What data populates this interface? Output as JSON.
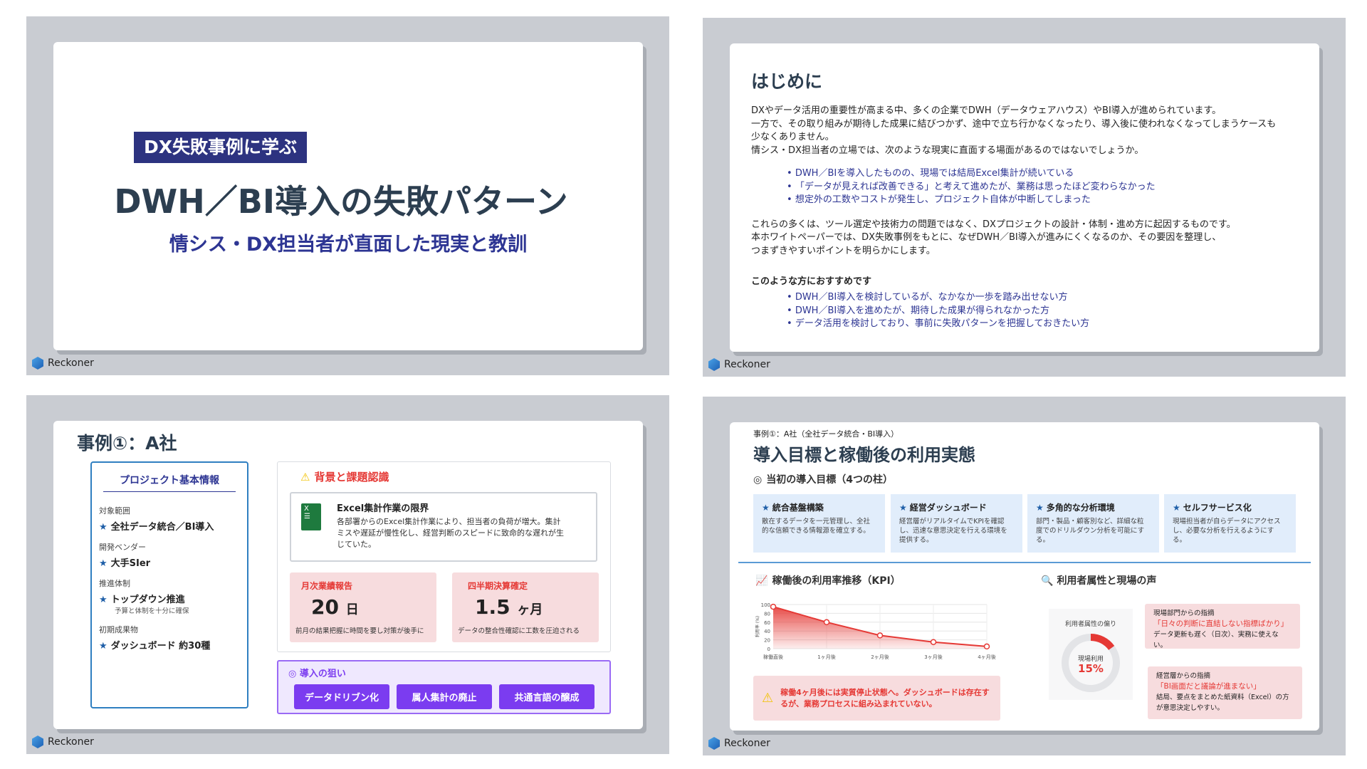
{
  "brand": "Reckoner",
  "slide1": {
    "badge": "DX失敗事例に学ぶ",
    "title": "DWH／BI導入の失敗パターン",
    "subtitle": "情シス・DX担当者が直面した現実と教訓"
  },
  "slide2": {
    "heading": "はじめに",
    "para1": [
      "DXやデータ活用の重要性が高まる中、多くの企業でDWH（データウェアハウス）やBI導入が進められています。",
      "一方で、その取り組みが期待した成果に結びつかず、途中で立ち行かなくなったり、導入後に使われなくなってしまうケースも",
      "少なくありません。",
      "情シス・DX担当者の立場では、次のような現実に直面する場面があるのではないでしょうか。"
    ],
    "bullets1": [
      "DWH／BIを導入したものの、現場では結局Excel集計が続いている",
      "「データが見えれば改善できる」と考えて進めたが、業務は思ったほど変わらなかった",
      "想定外の工数やコストが発生し、プロジェクト自体が中断してしまった"
    ],
    "para2": [
      "これらの多くは、ツール選定や技術力の問題ではなく、DXプロジェクトの設計・体制・進め方に起因するものです。",
      "本ホワイトペーパーでは、DX失敗事例をもとに、なぜDWH／BI導入が進みにくくなるのか、その要因を整理し、",
      "つまずきやすいポイントを明らかにします。"
    ],
    "sub_heading": "このような方におすすめです",
    "bullets2": [
      "DWH／BI導入を検討しているが、なかなか一歩を踏み出せない方",
      "DWH／BI導入を進めたが、期待した成果が得られなかった方",
      "データ活用を検討しており、事前に失敗パターンを把握しておきたい方"
    ]
  },
  "slide3": {
    "title": "事例①：A社",
    "info": {
      "heading": "プロジェクト基本情報",
      "fields": [
        {
          "label": "対象範囲",
          "value": "全社データ統合／BI導入"
        },
        {
          "label": "開発ベンダー",
          "value": "大手SIer"
        },
        {
          "label": "推進体制",
          "value": "トップダウン推進",
          "note": "予算と体制を十分に確保"
        },
        {
          "label": "初期成果物",
          "value": "ダッシュボード 約30種"
        }
      ]
    },
    "background": {
      "heading": "背景と課題認識",
      "excel_title": "Excel集計作業の限界",
      "excel_text": "各部署からのExcel集計作業により、担当者の負荷が増大。集計ミスや遅延が慢性化し、経営判断のスピードに致命的な遅れが生じていた。",
      "metrics": [
        {
          "label": "月次業績報告",
          "value": "20",
          "unit": "日",
          "note": "前月の結果把握に時間を要し対策が後手に"
        },
        {
          "label": "四半期決算確定",
          "value": "1.5",
          "unit": "ヶ月",
          "note": "データの整合性確認に工数を圧迫される"
        }
      ]
    },
    "aims": {
      "heading": "◎ 導入の狙い",
      "buttons": [
        "データドリブン化",
        "属人集計の廃止",
        "共通言語の醸成"
      ]
    }
  },
  "slide4": {
    "breadcrumb": "事例①：A社（全社データ統合・BI導入）",
    "title": "導入目標と稼働後の利用実態",
    "goals_heading": "当初の導入目標（4つの柱）",
    "goals": [
      {
        "title": "統合基盤構築",
        "text": "散在するデータを一元管理し、全社的な信頼できる情報源を確立する。"
      },
      {
        "title": "経営ダッシュボード",
        "text": "経営層がリアルタイムでKPIを確認し、迅速な意思決定を行える環境を提供する。"
      },
      {
        "title": "多角的な分析環境",
        "text": "部門・製品・顧客別など、詳細な粒度でのドリルダウン分析を可能にする。"
      },
      {
        "title": "セルフサービス化",
        "text": "現場担当者が自らデータにアクセスし、必要な分析を行えるようにする。"
      }
    ],
    "kpi_heading": "稼働後の利用率推移（KPI）",
    "warning": "稼働4ヶ月後には実質停止状態へ。ダッシュボードは存在するが、業務プロセスに組み込まれていない。",
    "voice_heading": "利用者属性と現場の声",
    "donut": {
      "title": "利用者属性の偏り",
      "label": "現場利用",
      "value_text": "15%",
      "value": 15,
      "color": "#e53935"
    },
    "voices": [
      {
        "source": "現場部門からの指摘",
        "quote": "「日々の判断に直結しない指標ばかり」",
        "text": "データ更新も遅く（日次）、実務に使えない。"
      },
      {
        "source": "経営層からの指摘",
        "quote": "「BI画面だと議論が進まない」",
        "text": "結局、要点をまとめた紙資料（Excel）の方が意思決定しやすい。"
      }
    ]
  },
  "chart_data": {
    "type": "area",
    "categories": [
      "稼働直後",
      "1ヶ月後",
      "2ヶ月後",
      "3ヶ月後",
      "4ヶ月後"
    ],
    "values": [
      95,
      60,
      30,
      15,
      5
    ],
    "ylabel": "利用率 (%)",
    "ylim": [
      0,
      100
    ],
    "yticks": [
      0,
      20,
      40,
      60,
      80,
      100
    ],
    "grid": true,
    "color": "#e53935"
  },
  "colors": {
    "navy": "#2d3593",
    "title": "#2c3e50",
    "red": "#e53935",
    "purple": "#7b3cf0",
    "blue": "#1f5fa8"
  }
}
